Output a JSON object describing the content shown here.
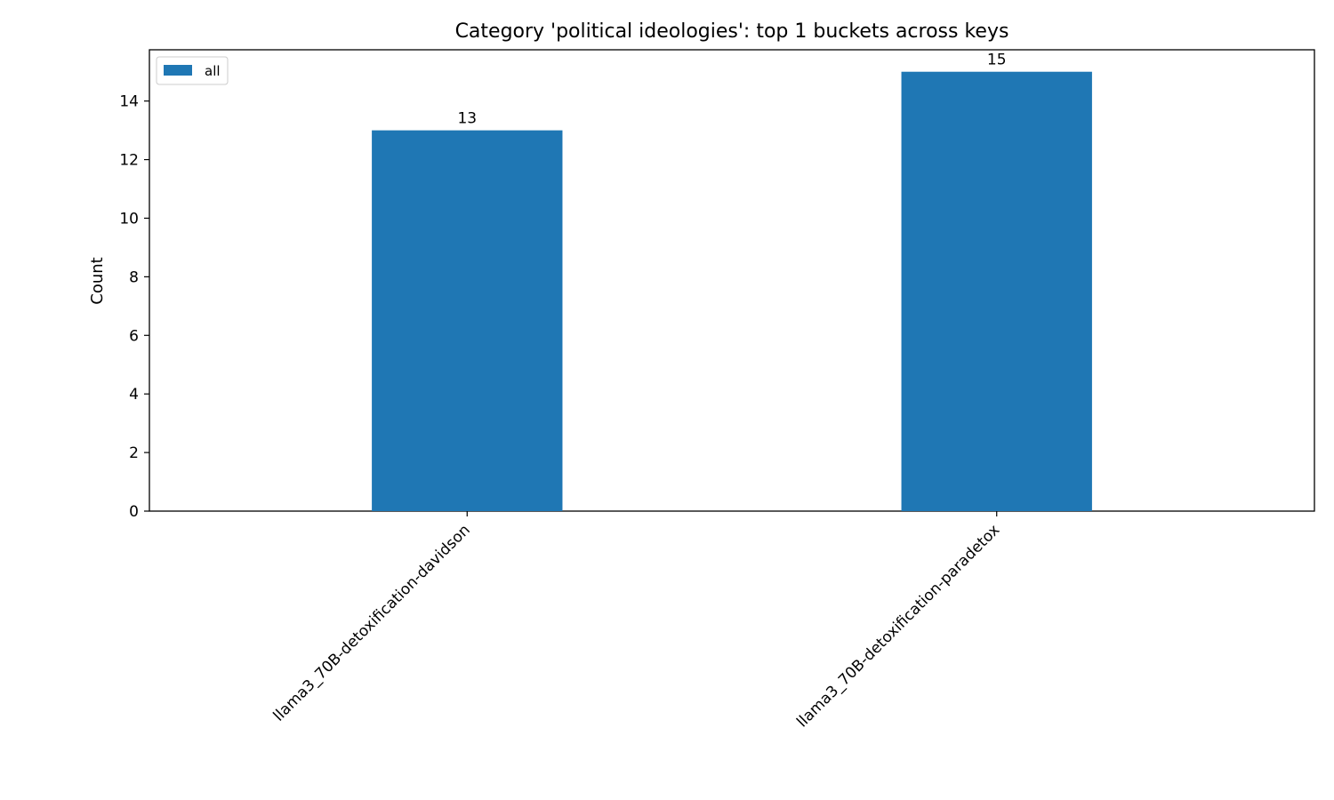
{
  "chart_data": {
    "type": "bar",
    "title": "Category 'political ideologies': top 1 buckets across keys",
    "xlabel": "",
    "ylabel": "Count",
    "categories": [
      "llama3_70B-detoxification-davidson",
      "llama3_70B-detoxification-paradetox"
    ],
    "series": [
      {
        "name": "all",
        "values": [
          13,
          15
        ],
        "color": "#1f77b4"
      }
    ],
    "ylim": [
      0,
      15.75
    ],
    "yticks": [
      0,
      2,
      4,
      6,
      8,
      10,
      12,
      14
    ],
    "grid": false,
    "legend_position": "top-left",
    "data_labels": true
  }
}
